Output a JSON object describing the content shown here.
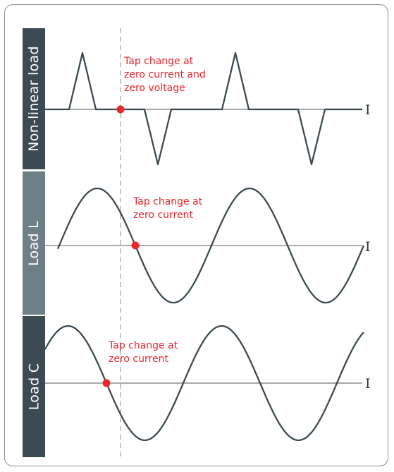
{
  "panels": [
    {
      "label": "Non-linear load",
      "annotation_lines": [
        "Tap change at",
        "zero current and",
        "zero voltage"
      ],
      "axis_symbol": "I"
    },
    {
      "label": "Load L",
      "annotation_lines": [
        "Tap change at",
        "zero current"
      ],
      "axis_symbol": "I"
    },
    {
      "label": "Load C",
      "annotation_lines": [
        "Tap change at",
        "zero current"
      ],
      "axis_symbol": "I"
    }
  ],
  "colors": {
    "waveform": "#3d4a52",
    "marker": "#e8262d",
    "annotation_text": "#e8262d",
    "axis": "#555555",
    "guide_line": "#aaaaaa",
    "panel_label_dark": "#3b4a53",
    "panel_label_mid": "#6d7f87"
  }
}
